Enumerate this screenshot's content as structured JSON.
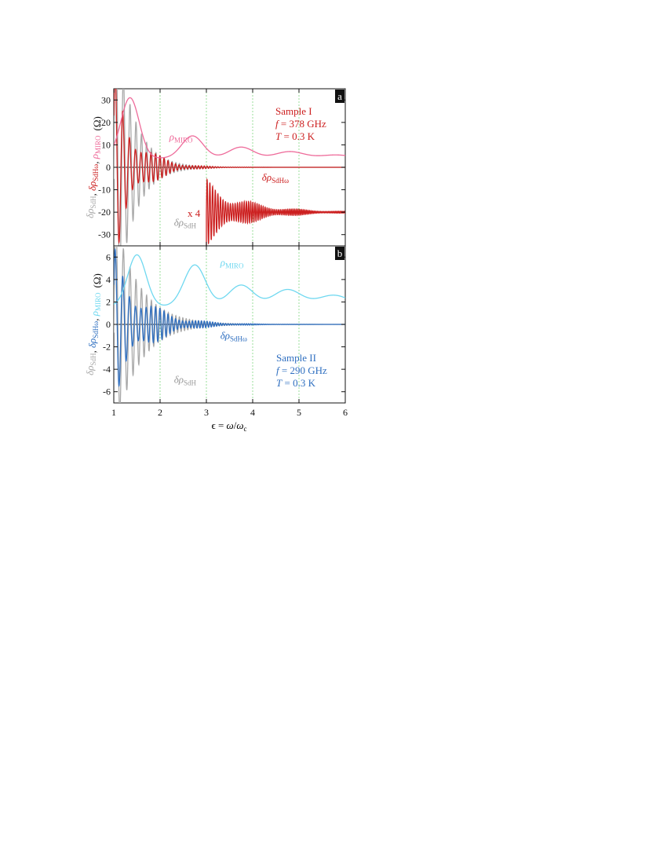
{
  "figure": {
    "xlabel": {
      "eps": "ϵ",
      "eq": " = ",
      "omega": "ω",
      "slash": "/",
      "omega_c": "ω",
      "sub_c": "c"
    },
    "ticks": {
      "x": [
        "1",
        "2",
        "3",
        "4",
        "5",
        "6"
      ],
      "a_y": [
        "30",
        "20",
        "10",
        "0",
        "-10",
        "-20",
        "-30"
      ],
      "b_y": [
        "6",
        "4",
        "2",
        "0",
        "-2",
        "-4",
        "-6"
      ]
    }
  },
  "chart_data": [
    {
      "type": "line",
      "panel": "a",
      "panel_label": "a",
      "xlim": [
        1,
        6
      ],
      "ylim": [
        -35,
        35
      ],
      "yunit": "(Ω)",
      "ylabel_parts": [
        {
          "text": "δρ",
          "sub": "SdH",
          "color": "#a8a8a8"
        },
        {
          "text": ", ",
          "sub": "",
          "color": "#111111"
        },
        {
          "text": "δρ",
          "sub": "SdHω",
          "color": "#cc1f1f"
        },
        {
          "text": ", ",
          "sub": "",
          "color": "#111111"
        },
        {
          "text": "ρ",
          "sub": "MIRO",
          "color": "#ee6b9a"
        }
      ],
      "vlines_x": [
        2,
        3,
        4,
        5
      ],
      "series_labels": {
        "miro": {
          "main": "ρ",
          "sub": "MIRO",
          "x": 2.2,
          "y": 12
        },
        "sdhw": {
          "main": "δρ",
          "sub": "SdHω",
          "x": 4.2,
          "y": -6
        },
        "sdh": {
          "main": "δρ",
          "sub": "SdH",
          "x": 2.3,
          "y": -26
        }
      },
      "scale_note": "x 4",
      "sample": {
        "name": "Sample I",
        "f_label": "f",
        "f_value": " = 378 GHz",
        "T_label": "T",
        "T_value": " = 0.3 K"
      },
      "colors": {
        "sdh": "#a8a8a8",
        "sdhw": "#cc1f1f",
        "miro": "#ee6b9a"
      },
      "series_model": {
        "sdh": {
          "amp_at_1": 70,
          "decay": 2.6,
          "period_base": 0.083
        },
        "sdhw": {
          "amp_at_1": 34,
          "decay": 2.2,
          "period_base": 0.083
        },
        "miro": {
          "peaks_x": [
            1.35,
            2.7,
            3.75,
            4.8,
            5.8
          ],
          "peaks_y": [
            31,
            14,
            9,
            7,
            5.5
          ],
          "baseline": 4
        },
        "sdhw_x4": {
          "x_start": 3.0,
          "offset": -20,
          "amp_at_3": 11
        }
      }
    },
    {
      "type": "line",
      "panel": "b",
      "panel_label": "b",
      "xlim": [
        1,
        6
      ],
      "ylim": [
        -7,
        7
      ],
      "yunit": "(Ω)",
      "ylabel_parts": [
        {
          "text": "δρ",
          "sub": "SdH",
          "color": "#a8a8a8"
        },
        {
          "text": ", ",
          "sub": "",
          "color": "#111111"
        },
        {
          "text": "δρ",
          "sub": "SdHω",
          "color": "#2f6fc0"
        },
        {
          "text": ", ",
          "sub": "",
          "color": "#111111"
        },
        {
          "text": "ρ",
          "sub": "MIRO",
          "color": "#6fd8f0"
        }
      ],
      "vlines_x": [
        2,
        3,
        4,
        5
      ],
      "series_labels": {
        "miro": {
          "main": "ρ",
          "sub": "MIRO",
          "x": 3.3,
          "y": 5.2
        },
        "sdhw": {
          "main": "δρ",
          "sub": "SdHω",
          "x": 3.3,
          "y": -1.3
        },
        "sdh": {
          "main": "δρ",
          "sub": "SdH",
          "x": 2.3,
          "y": -5.2
        }
      },
      "sample": {
        "name": "Sample II",
        "f_label": "f",
        "f_value": " = 290 GHz",
        "T_label": "T",
        "T_value": " = 0.3 K"
      },
      "colors": {
        "sdh": "#a8a8a8",
        "sdhw": "#2f6fc0",
        "miro": "#6fd8f0"
      },
      "series_model": {
        "sdh": {
          "amp_at_1": 10,
          "decay": 1.9,
          "period_base": 0.083
        },
        "sdhw": {
          "amp_at_1": 5.2,
          "decay": 1.6,
          "period_base": 0.083
        },
        "miro": {
          "peaks_x": [
            1.5,
            2.75,
            3.75,
            4.75,
            5.75
          ],
          "peaks_y": [
            6.2,
            5.3,
            3.5,
            3.1,
            2.6
          ],
          "baseline": 1.6
        }
      }
    }
  ]
}
